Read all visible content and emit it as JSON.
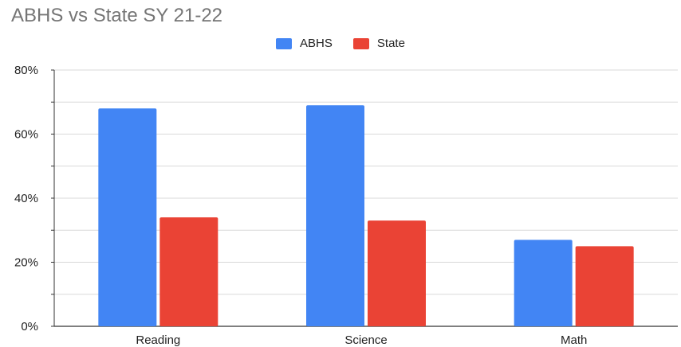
{
  "chart_data": {
    "type": "bar",
    "title": "ABHS vs State SY 21-22",
    "xlabel": "",
    "ylabel": "",
    "categories": [
      "Reading",
      "Science",
      "Math"
    ],
    "series": [
      {
        "name": "ABHS",
        "values": [
          68,
          69,
          27
        ],
        "color": "#4285f4"
      },
      {
        "name": "State",
        "values": [
          34,
          33,
          25
        ],
        "color": "#ea4335"
      }
    ],
    "ylim": [
      0,
      80
    ],
    "yticks": [
      0,
      20,
      40,
      60,
      80
    ],
    "ytick_labels": [
      "0%",
      "20%",
      "40%",
      "60%",
      "80%"
    ],
    "grid": true,
    "legend_position": "top-center"
  }
}
